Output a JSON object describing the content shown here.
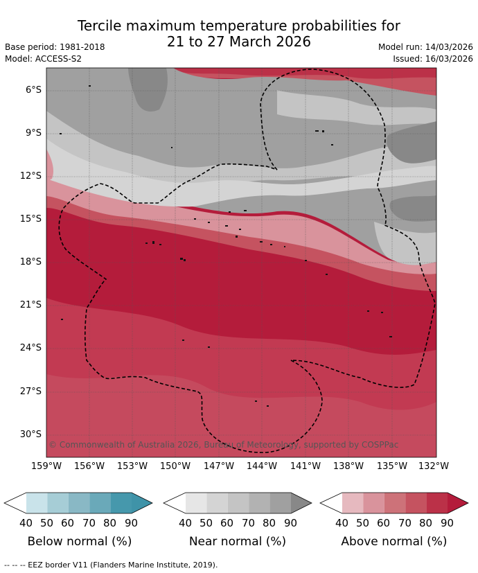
{
  "title": {
    "line1": "Tercile maximum temperature probabilities for",
    "line2": "21 to 27 March 2026"
  },
  "meta": {
    "base_period": "Base period: 1981-2018",
    "model": "Model: ACCESS-S2",
    "model_run": "Model run: 14/03/2026",
    "issued": "Issued: 16/03/2026"
  },
  "map": {
    "lat_labels": [
      "6°S",
      "9°S",
      "12°S",
      "15°S",
      "18°S",
      "21°S",
      "24°S",
      "27°S",
      "30°S"
    ],
    "lon_labels": [
      "159°W",
      "156°W",
      "153°W",
      "150°W",
      "147°W",
      "144°W",
      "141°W",
      "138°W",
      "135°W",
      "132°W"
    ],
    "copyright": "© Commonwealth of Australia 2026, Bureau of Meteorology, supported by COSPPac"
  },
  "colorbars": [
    {
      "name": "below",
      "title": "Below normal (%)",
      "ticks": [
        "40",
        "50",
        "60",
        "70",
        "80",
        "90"
      ],
      "colors": [
        "#ffffff",
        "#c9e3ea",
        "#a6cdd6",
        "#89b8c5",
        "#6aa9b9",
        "#4698ac",
        "#3f93a8"
      ]
    },
    {
      "name": "near",
      "title": "Near normal (%)",
      "ticks": [
        "40",
        "50",
        "60",
        "70",
        "80",
        "90"
      ],
      "colors": [
        "#ffffff",
        "#e6e6e6",
        "#d4d4d4",
        "#c4c4c4",
        "#b2b2b2",
        "#a0a0a0",
        "#888888"
      ]
    },
    {
      "name": "above",
      "title": "Above normal (%)",
      "ticks": [
        "40",
        "50",
        "60",
        "70",
        "80",
        "90"
      ],
      "colors": [
        "#ffffff",
        "#e6b9bf",
        "#d9939c",
        "#cd7279",
        "#c55360",
        "#bb3148",
        "#b41c3b"
      ]
    }
  ],
  "footer": "--  --  -- EEZ border V11 (Flanders Marine Institute, 2019)."
}
